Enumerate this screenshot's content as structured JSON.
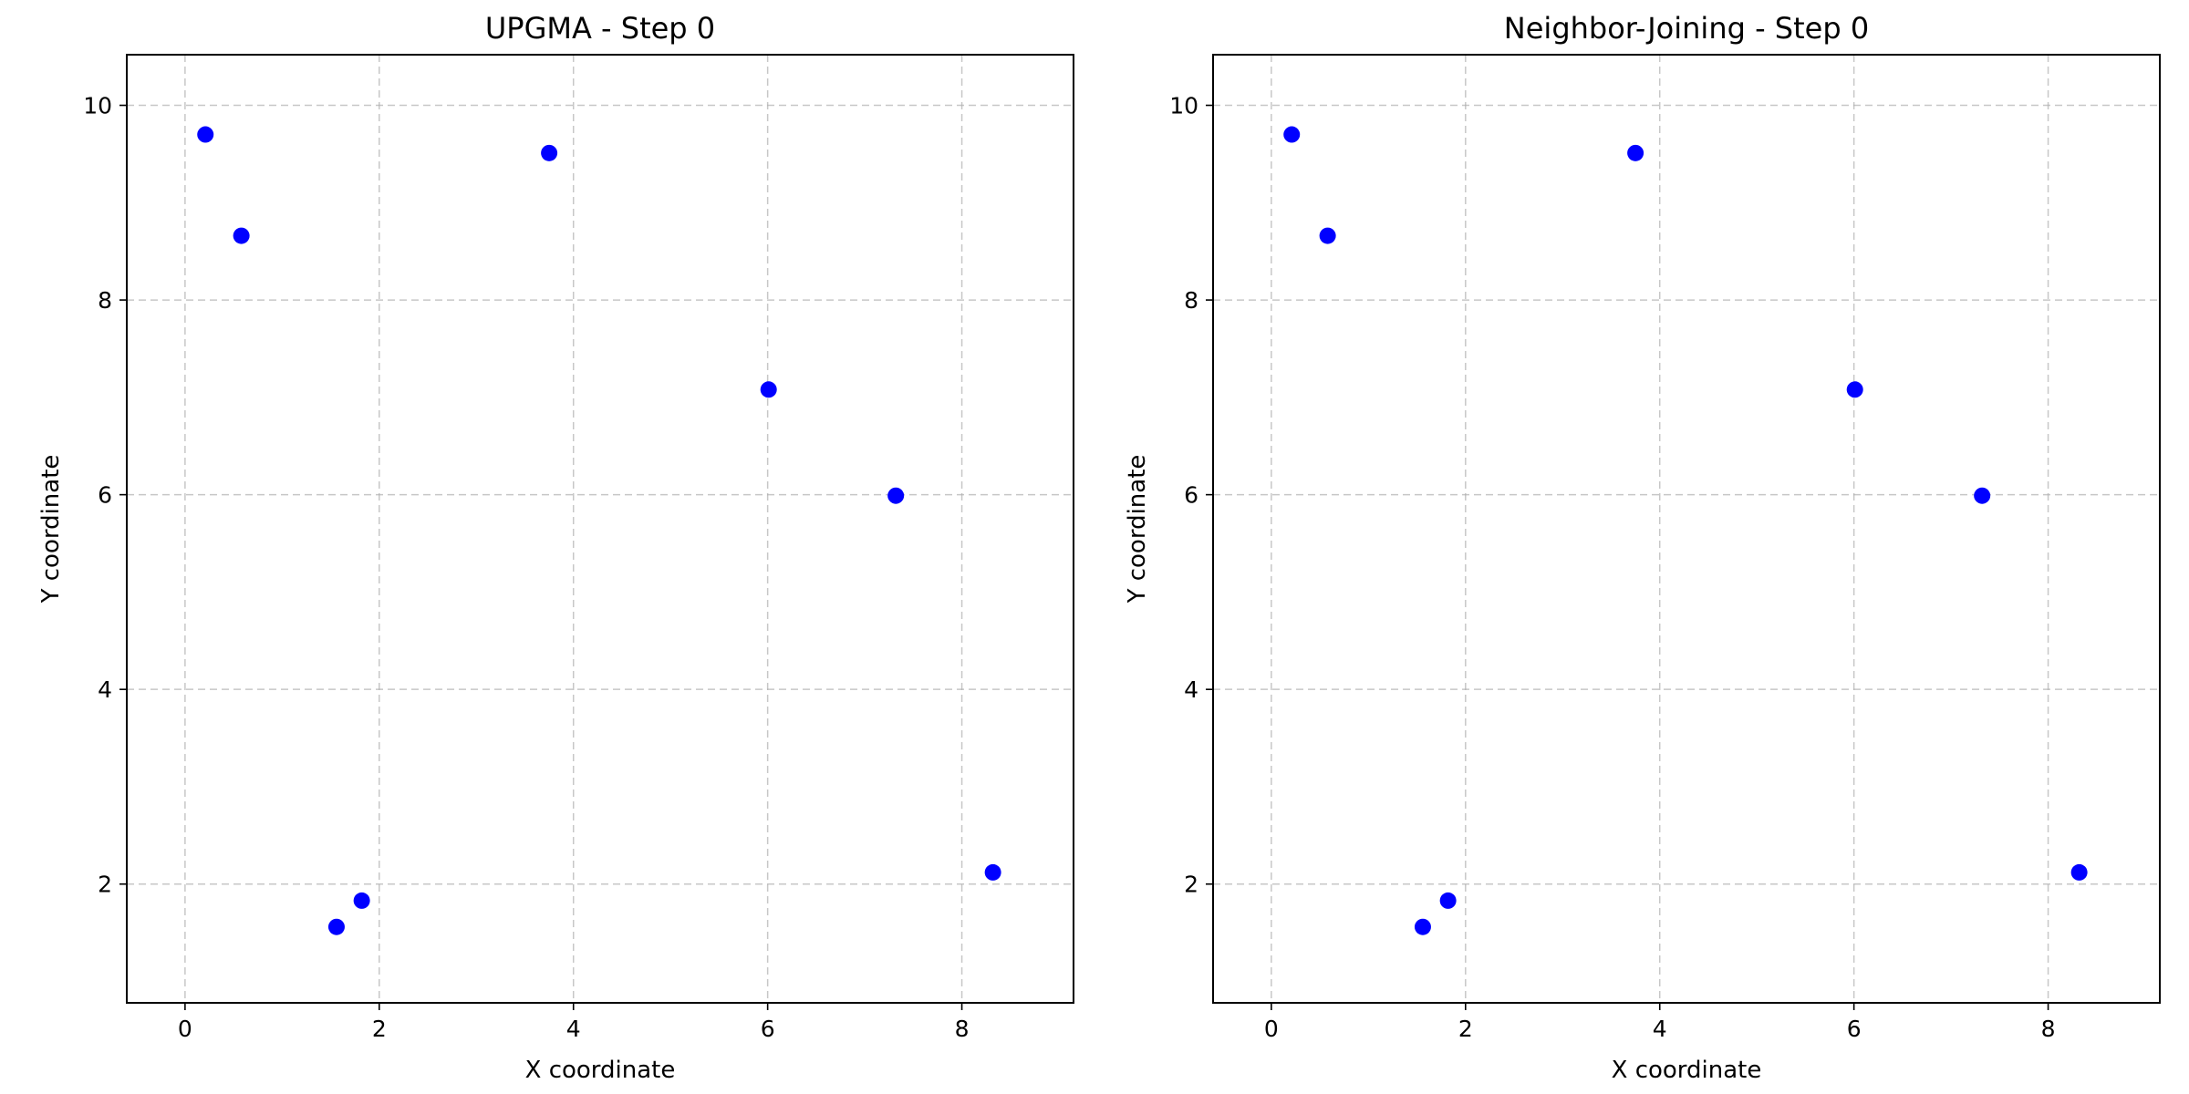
{
  "figure": {
    "background": "#ffffff"
  },
  "chart_data": [
    {
      "type": "scatter",
      "title": "UPGMA - Step 0",
      "xlabel": "X coordinate",
      "ylabel": "Y coordinate",
      "xlim": [
        -0.6,
        9.15
      ],
      "ylim": [
        0.78,
        10.52
      ],
      "xticks": [
        0,
        2,
        4,
        6,
        8
      ],
      "yticks": [
        2,
        4,
        6,
        8,
        10
      ],
      "grid": true,
      "point_color": "#0000ff",
      "points": [
        {
          "x": 0.21,
          "y": 9.7
        },
        {
          "x": 0.58,
          "y": 8.66
        },
        {
          "x": 3.75,
          "y": 9.51
        },
        {
          "x": 6.01,
          "y": 7.08
        },
        {
          "x": 7.32,
          "y": 5.99
        },
        {
          "x": 1.56,
          "y": 1.56
        },
        {
          "x": 1.82,
          "y": 1.83
        },
        {
          "x": 8.32,
          "y": 2.12
        }
      ]
    },
    {
      "type": "scatter",
      "title": "Neighbor-Joining - Step 0",
      "xlabel": "X coordinate",
      "ylabel": "Y coordinate",
      "xlim": [
        -0.6,
        9.15
      ],
      "ylim": [
        0.78,
        10.52
      ],
      "xticks": [
        0,
        2,
        4,
        6,
        8
      ],
      "yticks": [
        2,
        4,
        6,
        8,
        10
      ],
      "grid": true,
      "point_color": "#0000ff",
      "points": [
        {
          "x": 0.21,
          "y": 9.7
        },
        {
          "x": 0.58,
          "y": 8.66
        },
        {
          "x": 3.75,
          "y": 9.51
        },
        {
          "x": 6.01,
          "y": 7.08
        },
        {
          "x": 7.32,
          "y": 5.99
        },
        {
          "x": 1.56,
          "y": 1.56
        },
        {
          "x": 1.82,
          "y": 1.83
        },
        {
          "x": 8.32,
          "y": 2.12
        }
      ]
    }
  ]
}
